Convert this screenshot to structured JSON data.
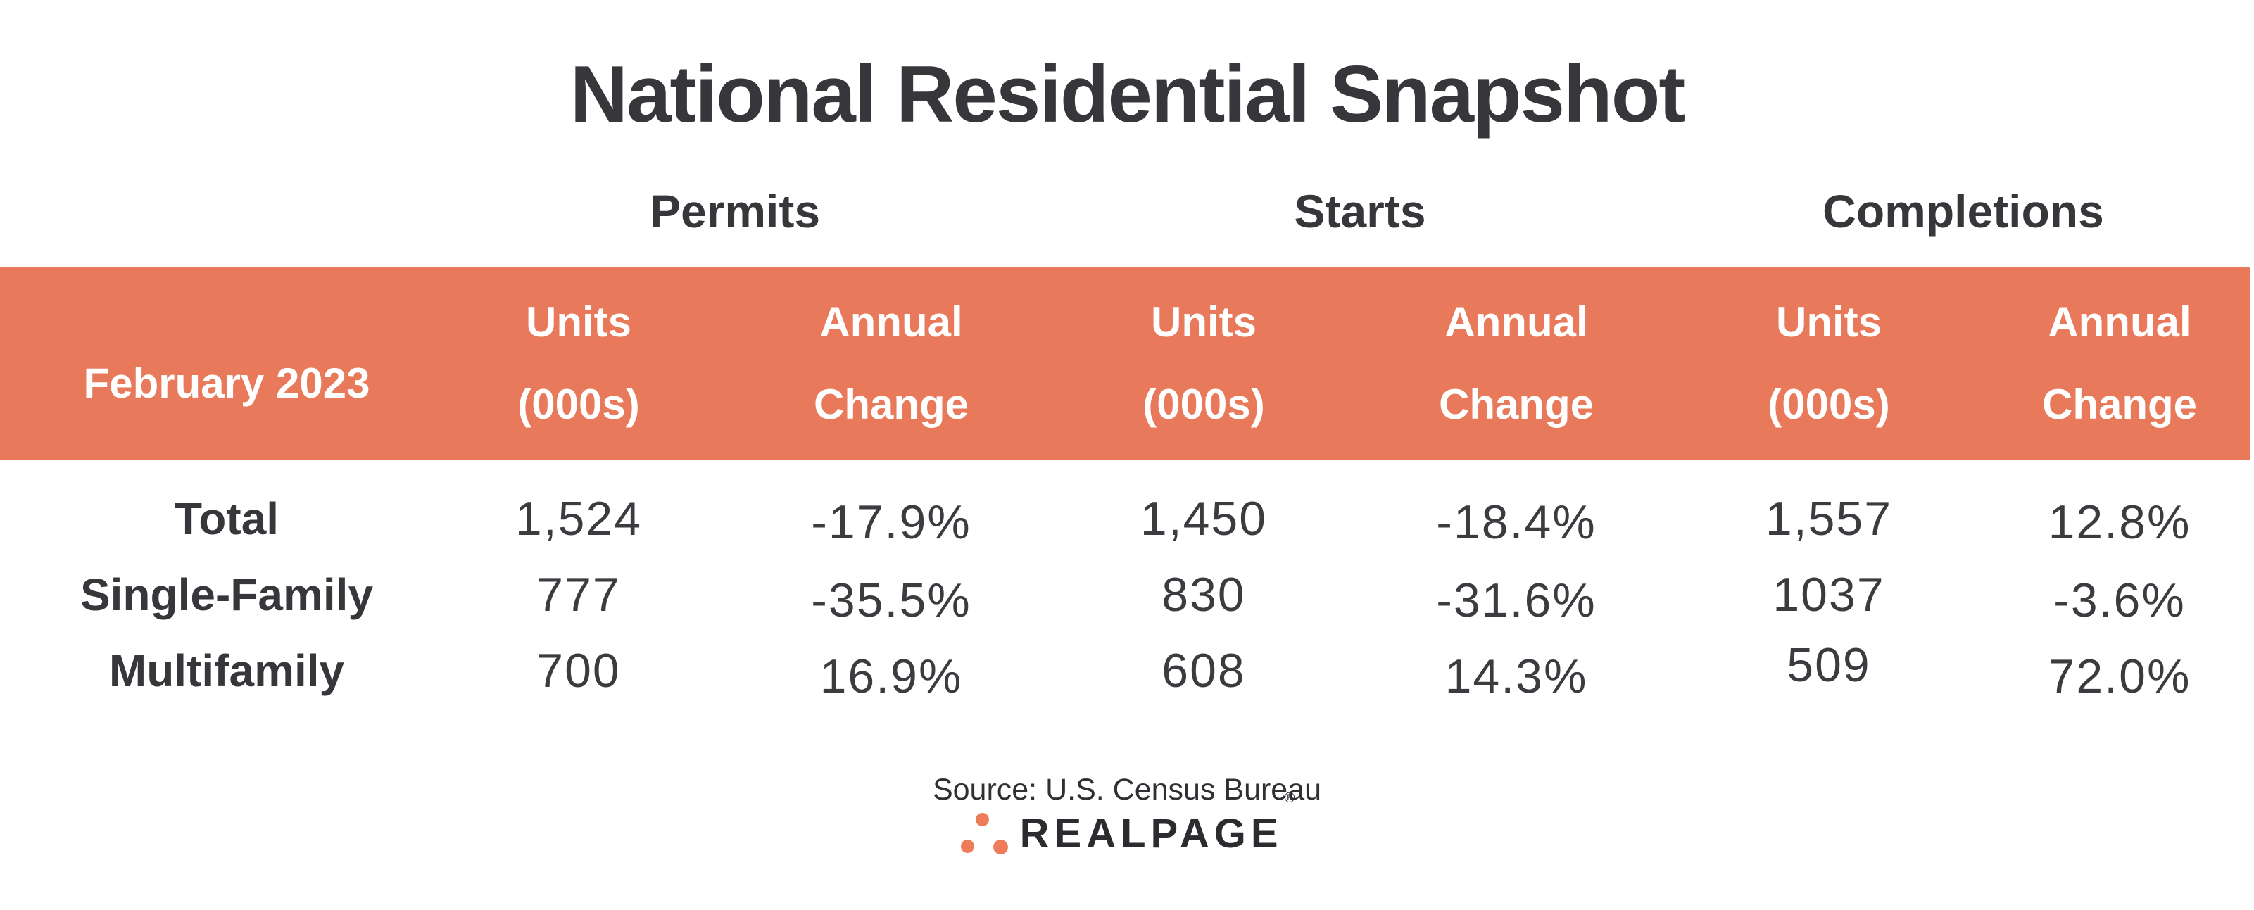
{
  "title": "National Residential Snapshot",
  "colors": {
    "accent_orange": "#E87A5B",
    "dark_text": "#37373B",
    "header_text_white": "#FFFFFF",
    "logo_dot_orange": "#EE7B59",
    "logo_text_dark": "#2B2B30"
  },
  "table": {
    "period_label": "February 2023",
    "groups": [
      {
        "label": "Permits"
      },
      {
        "label": "Starts"
      },
      {
        "label": "Completions"
      }
    ],
    "subheader": {
      "units": [
        "Units",
        "(000s)"
      ],
      "change": [
        "Annual",
        "Change"
      ]
    },
    "rows": [
      {
        "label": "Total",
        "values": [
          "1,524",
          "-17.9%",
          "1,450",
          "-18.4%",
          "1,557",
          "12.8%"
        ]
      },
      {
        "label": "Single-Family",
        "values": [
          "777",
          "-35.5%",
          "830",
          "-31.6%",
          "1037",
          "-3.6%"
        ]
      },
      {
        "label": "Multifamily",
        "values": [
          "700",
          "16.9%",
          "608",
          "14.3%",
          "509",
          "72.0%"
        ]
      }
    ]
  },
  "footer": {
    "source": "Source: U.S. Census Bureau",
    "brand": "REALPAGE",
    "registered": "®"
  },
  "chart_data": {
    "type": "table",
    "title": "National Residential Snapshot",
    "period": "February 2023",
    "column_groups": [
      "Permits",
      "Starts",
      "Completions"
    ],
    "columns_per_group": [
      "Units (000s)",
      "Annual Change"
    ],
    "rows": [
      {
        "category": "Total",
        "permits_units_000s": 1524,
        "permits_annual_change_pct": -17.9,
        "starts_units_000s": 1450,
        "starts_annual_change_pct": -18.4,
        "completions_units_000s": 1557,
        "completions_annual_change_pct": 12.8
      },
      {
        "category": "Single-Family",
        "permits_units_000s": 777,
        "permits_annual_change_pct": -35.5,
        "starts_units_000s": 830,
        "starts_annual_change_pct": -31.6,
        "completions_units_000s": 1037,
        "completions_annual_change_pct": -3.6
      },
      {
        "category": "Multifamily",
        "permits_units_000s": 700,
        "permits_annual_change_pct": 16.9,
        "starts_units_000s": 608,
        "starts_annual_change_pct": 14.3,
        "completions_units_000s": 509,
        "completions_annual_change_pct": 72.0
      }
    ],
    "source": "Source: U.S. Census Bureau",
    "brand": "REALPAGE"
  }
}
